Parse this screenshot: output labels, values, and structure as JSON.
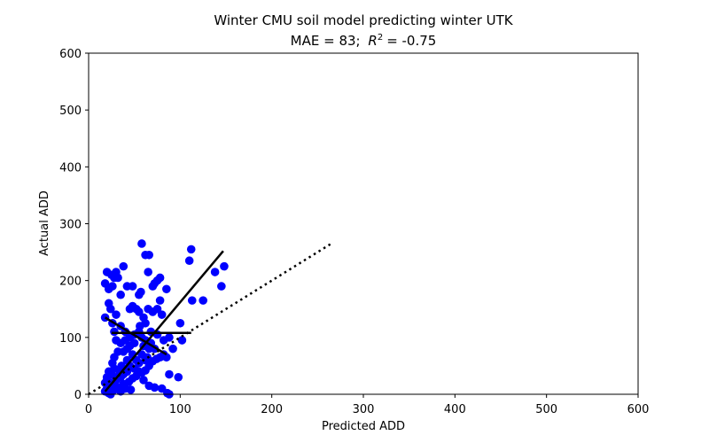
{
  "chart_data": {
    "type": "scatter",
    "title_line1": "Winter CMU soil model predicting winter UTK",
    "title_line2": "MAE = 83; R² = -0.75",
    "title_mae": "MAE = 83;",
    "title_r_symbol": "R",
    "title_r_exp": "2",
    "title_r_value": "= -0.75",
    "xlabel": "Predicted ADD",
    "ylabel": "Actual ADD",
    "xlim": [
      0,
      600
    ],
    "ylim": [
      0,
      600
    ],
    "xticks": [
      "0",
      "100",
      "200",
      "300",
      "400",
      "500",
      "600"
    ],
    "yticks": [
      "0",
      "100",
      "200",
      "300",
      "400",
      "500",
      "600"
    ],
    "point_color": "#0000ff",
    "line_color": "#000000",
    "points": [
      [
        18,
        195
      ],
      [
        20,
        215
      ],
      [
        22,
        185
      ],
      [
        25,
        210
      ],
      [
        28,
        205
      ],
      [
        30,
        215
      ],
      [
        32,
        205
      ],
      [
        26,
        190
      ],
      [
        35,
        175
      ],
      [
        38,
        225
      ],
      [
        42,
        190
      ],
      [
        48,
        190
      ],
      [
        55,
        175
      ],
      [
        57,
        180
      ],
      [
        58,
        265
      ],
      [
        62,
        245
      ],
      [
        66,
        245
      ],
      [
        65,
        215
      ],
      [
        70,
        190
      ],
      [
        72,
        195
      ],
      [
        75,
        200
      ],
      [
        78,
        205
      ],
      [
        85,
        185
      ],
      [
        112,
        255
      ],
      [
        110,
        235
      ],
      [
        138,
        215
      ],
      [
        145,
        190
      ],
      [
        148,
        225
      ],
      [
        125,
        165
      ],
      [
        113,
        165
      ],
      [
        22,
        160
      ],
      [
        24,
        150
      ],
      [
        18,
        135
      ],
      [
        26,
        125
      ],
      [
        30,
        140
      ],
      [
        35,
        120
      ],
      [
        40,
        110
      ],
      [
        45,
        150
      ],
      [
        48,
        155
      ],
      [
        52,
        150
      ],
      [
        55,
        145
      ],
      [
        60,
        135
      ],
      [
        62,
        125
      ],
      [
        65,
        150
      ],
      [
        70,
        145
      ],
      [
        75,
        150
      ],
      [
        78,
        165
      ],
      [
        80,
        140
      ],
      [
        100,
        125
      ],
      [
        102,
        95
      ],
      [
        92,
        80
      ],
      [
        82,
        70
      ],
      [
        85,
        65
      ],
      [
        78,
        65
      ],
      [
        72,
        80
      ],
      [
        68,
        90
      ],
      [
        62,
        95
      ],
      [
        58,
        100
      ],
      [
        55,
        110
      ],
      [
        50,
        105
      ],
      [
        45,
        100
      ],
      [
        40,
        95
      ],
      [
        35,
        90
      ],
      [
        30,
        95
      ],
      [
        28,
        110
      ],
      [
        32,
        75
      ],
      [
        28,
        65
      ],
      [
        38,
        75
      ],
      [
        42,
        80
      ],
      [
        45,
        85
      ],
      [
        48,
        70
      ],
      [
        52,
        60
      ],
      [
        55,
        55
      ],
      [
        50,
        45
      ],
      [
        45,
        50
      ],
      [
        42,
        40
      ],
      [
        38,
        35
      ],
      [
        35,
        30
      ],
      [
        30,
        25
      ],
      [
        25,
        20
      ],
      [
        22,
        15
      ],
      [
        20,
        10
      ],
      [
        18,
        5
      ],
      [
        22,
        2
      ],
      [
        28,
        8
      ],
      [
        32,
        12
      ],
      [
        38,
        18
      ],
      [
        44,
        22
      ],
      [
        48,
        28
      ],
      [
        52,
        32
      ],
      [
        58,
        38
      ],
      [
        62,
        42
      ],
      [
        66,
        50
      ],
      [
        70,
        58
      ],
      [
        74,
        62
      ],
      [
        66,
        15
      ],
      [
        72,
        12
      ],
      [
        80,
        10
      ],
      [
        86,
        2
      ],
      [
        88,
        35
      ],
      [
        98,
        30
      ],
      [
        62,
        60
      ],
      [
        58,
        70
      ],
      [
        66,
        80
      ],
      [
        55,
        40
      ],
      [
        60,
        25
      ],
      [
        40,
        10
      ],
      [
        30,
        30
      ],
      [
        25,
        35
      ],
      [
        20,
        25
      ],
      [
        18,
        20
      ],
      [
        24,
        0
      ],
      [
        35,
        5
      ],
      [
        46,
        8
      ],
      [
        82,
        95
      ],
      [
        88,
        100
      ],
      [
        68,
        110
      ],
      [
        75,
        105
      ],
      [
        60,
        85
      ],
      [
        50,
        90
      ],
      [
        42,
        60
      ],
      [
        36,
        50
      ],
      [
        28,
        45
      ],
      [
        34,
        40
      ],
      [
        88,
        0
      ],
      [
        20,
        30
      ],
      [
        22,
        40
      ],
      [
        26,
        55
      ],
      [
        64,
        65
      ],
      [
        56,
        120
      ]
    ],
    "lines": [
      {
        "style": "solid",
        "x": [
          18,
          147
        ],
        "y": [
          5,
          252
        ]
      },
      {
        "style": "solid",
        "x": [
          25,
          112
        ],
        "y": [
          108,
          108
        ]
      },
      {
        "style": "solid",
        "x": [
          18,
          85
        ],
        "y": [
          135,
          70
        ]
      },
      {
        "style": "dotted",
        "x": [
          0,
          267
        ],
        "y": [
          0,
          267
        ]
      }
    ]
  }
}
